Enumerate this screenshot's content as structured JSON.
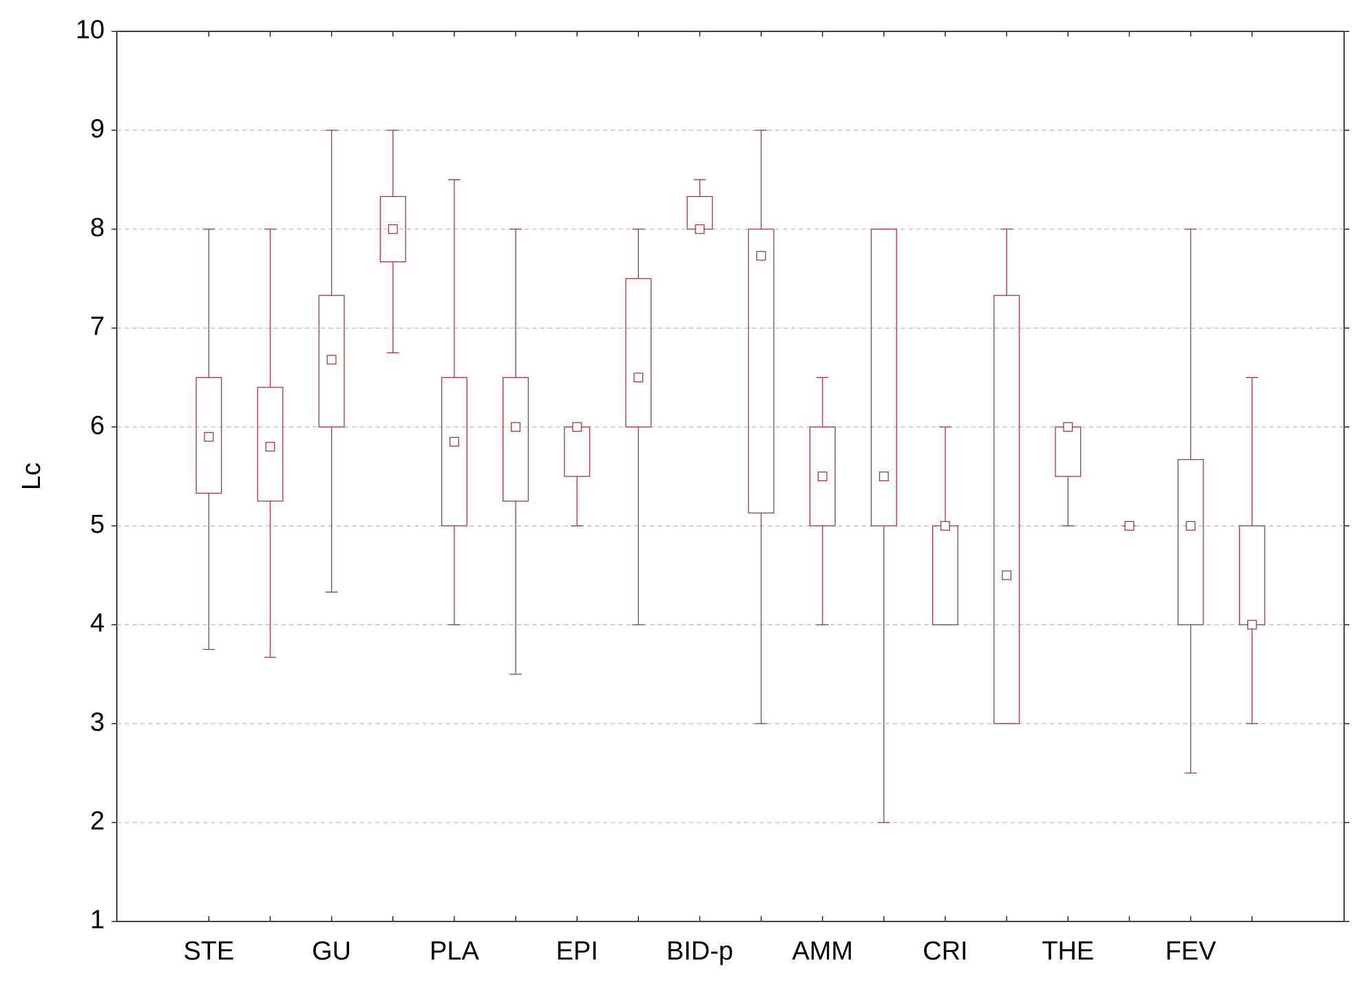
{
  "chart_data": {
    "type": "box",
    "y_label": "Lc",
    "categories": [
      "STE",
      null,
      "GU",
      null,
      "PLA",
      null,
      "EPI",
      null,
      "BID-p",
      null,
      "AMM",
      null,
      "CRI",
      null,
      "THE",
      null,
      "FEV",
      null
    ],
    "color": "#a83232",
    "max": [
      8,
      8,
      9,
      9,
      8.5,
      8,
      6,
      8,
      8.5,
      9,
      6.5,
      8,
      6,
      8,
      6,
      5,
      8,
      6.5
    ],
    "q3": [
      6.5,
      6.4,
      7.33,
      8.33,
      6.5,
      6.5,
      6,
      7.5,
      8.33,
      8,
      6,
      8,
      5,
      7.33,
      6,
      5,
      5.67,
      5
    ],
    "mean": [
      5.9,
      5.8,
      6.68,
      8,
      5.85,
      6,
      6,
      6.5,
      8,
      7.73,
      5.5,
      5.5,
      5,
      4.5,
      6,
      5,
      5,
      4
    ],
    "q1": [
      5.33,
      5.25,
      6,
      7.67,
      5,
      5.25,
      5.5,
      6,
      8,
      5.13,
      5,
      5,
      4,
      3,
      5.5,
      5,
      4,
      4
    ],
    "min": [
      3.75,
      3.67,
      4.33,
      6.75,
      4,
      3.5,
      5,
      4,
      8,
      3,
      4,
      2,
      4,
      3,
      5,
      5,
      2.5,
      3
    ],
    "ylim": [
      1,
      10
    ],
    "yticks": [
      1,
      2,
      3,
      4,
      5,
      6,
      7,
      8,
      9,
      10
    ],
    "grid": true
  }
}
